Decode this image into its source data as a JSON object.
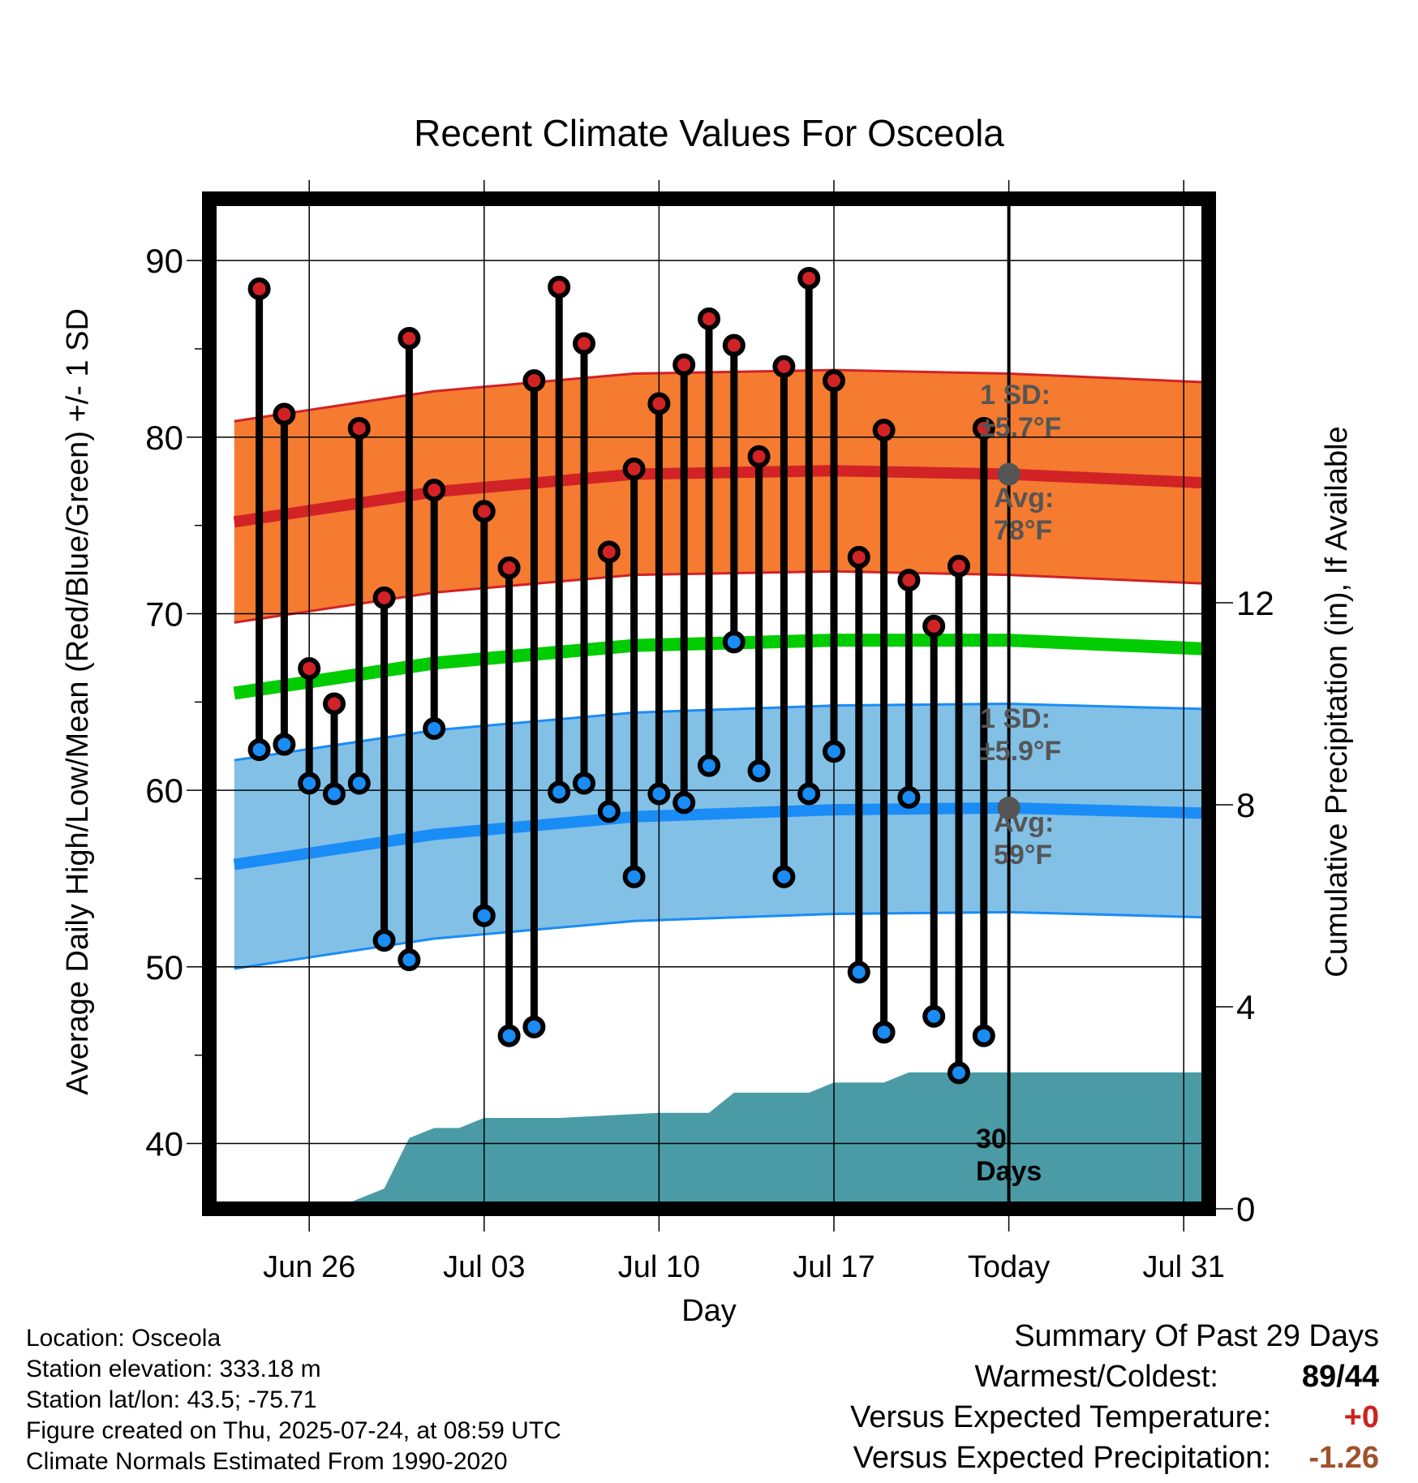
{
  "chart_data": {
    "type": "line",
    "title": "Recent Climate Values For Osceola",
    "xlabel": "Day",
    "ylabel": "Average Daily High/Low/Mean (Red/Blue/Green) +/- 1 SD",
    "y2label": "Cumulative Precipitation (in), If Available",
    "ylim": [
      36.3,
      93.5
    ],
    "y2lim": [
      0,
      20
    ],
    "y_ticks": [
      "40",
      "50",
      "60",
      "70",
      "80",
      "90"
    ],
    "y2_ticks": [
      "0",
      "4",
      "8",
      "12"
    ],
    "x_ticks": [
      "Jun 26",
      "Jul 03",
      "Jul 10",
      "Jul 17",
      "Today",
      "Jul 31"
    ],
    "x_range": [
      "Jun 22",
      "Aug 01"
    ],
    "today": "Jul 24",
    "grid": true,
    "dates": [
      "Jun 24",
      "Jun 25",
      "Jun 26",
      "Jun 27",
      "Jun 28",
      "Jun 29",
      "Jun 30",
      "Jul 01",
      "Jul 02",
      "Jul 03",
      "Jul 04",
      "Jul 05",
      "Jul 06",
      "Jul 07",
      "Jul 08",
      "Jul 09",
      "Jul 10",
      "Jul 11",
      "Jul 12",
      "Jul 13",
      "Jul 14",
      "Jul 15",
      "Jul 16",
      "Jul 17",
      "Jul 18",
      "Jul 19",
      "Jul 20",
      "Jul 21",
      "Jul 22",
      "Jul 23"
    ],
    "highs": [
      88.4,
      81.3,
      66.9,
      64.9,
      80.5,
      70.9,
      85.6,
      77.0,
      null,
      75.8,
      72.6,
      83.2,
      88.5,
      85.3,
      73.5,
      78.2,
      81.9,
      84.1,
      86.7,
      85.2,
      78.9,
      84.0,
      89.0,
      83.2,
      73.2,
      80.4,
      71.9,
      69.3,
      72.7,
      80.5
    ],
    "lows": [
      62.3,
      62.6,
      60.4,
      59.8,
      60.4,
      51.5,
      50.4,
      63.5,
      null,
      52.9,
      46.1,
      46.6,
      59.9,
      60.4,
      58.8,
      55.1,
      59.8,
      59.3,
      61.4,
      68.4,
      61.1,
      55.1,
      59.8,
      62.2,
      49.7,
      46.3,
      59.6,
      47.2,
      44.0,
      46.1
    ],
    "normal_high": {
      "x": [
        "Jun 23",
        "Jul 01",
        "Jul 09",
        "Jul 17",
        "Jul 24",
        "Aug 01"
      ],
      "values": [
        75.2,
        76.9,
        77.9,
        78.1,
        77.9,
        77.4
      ],
      "sd": 5.7
    },
    "normal_low": {
      "x": [
        "Jun 23",
        "Jul 01",
        "Jul 09",
        "Jul 17",
        "Jul 24",
        "Aug 01"
      ],
      "values": [
        55.8,
        57.5,
        58.5,
        58.9,
        59.0,
        58.7
      ],
      "sd": 5.9
    },
    "normal_mean": {
      "x": [
        "Jun 23",
        "Jul 01",
        "Jul 09",
        "Jul 17",
        "Jul 24",
        "Aug 01"
      ],
      "values": [
        65.5,
        67.2,
        68.2,
        68.5,
        68.5,
        68.0
      ]
    },
    "precip": {
      "x": [
        "Jun 22",
        "Jun 27",
        "Jun 28",
        "Jun 29",
        "Jun 30",
        "Jul 01",
        "Jul 02",
        "Jul 03",
        "Jul 06",
        "Jul 10",
        "Jul 12",
        "Jul 13",
        "Jul 16",
        "Jul 17",
        "Jul 19",
        "Jul 20",
        "Aug 01"
      ],
      "values": [
        0,
        0,
        0.2,
        0.4,
        1.4,
        1.6,
        1.6,
        1.8,
        1.8,
        1.9,
        1.9,
        2.3,
        2.3,
        2.5,
        2.5,
        2.7,
        2.7
      ]
    },
    "annotations": {
      "high_sd": [
        "1 SD:",
        "±5.7°F"
      ],
      "high_avg": [
        "Avg:",
        "78°F"
      ],
      "low_sd": [
        "1 SD:",
        "±5.9°F"
      ],
      "low_avg": [
        "Avg:",
        "59°F"
      ],
      "days": [
        "30",
        "Days"
      ]
    },
    "colors": {
      "high_band": "#f47b30",
      "high_line": "#d12226",
      "low_band": "#82c0e6",
      "low_line": "#1a8cf5",
      "mean_line": "#00cc00",
      "precip": "#4a9ba6",
      "high_dot": "#d12226",
      "low_dot": "#1a8cf5",
      "annotation": "#555555",
      "warm_cold": "#000000",
      "temp_delta": "#cc2222",
      "precip_delta": "#a0522d"
    }
  },
  "info": {
    "location": "Location: Osceola",
    "elevation": "Station elevation: 333.18 m",
    "latlon": "Station lat/lon: 43.5; -75.71",
    "created": "Figure created on Thu, 2025-07-24, at 08:59 UTC",
    "normals": "Climate Normals Estimated From 1990-2020"
  },
  "summary": {
    "title": "Summary Of Past 29 Days",
    "warmest_label": "Warmest/Coldest:",
    "warmest_value": "89/44",
    "temp_label": "Versus Expected Temperature:",
    "temp_value": "+0",
    "precip_label": "Versus Expected Precipitation:",
    "precip_value": "-1.26"
  }
}
